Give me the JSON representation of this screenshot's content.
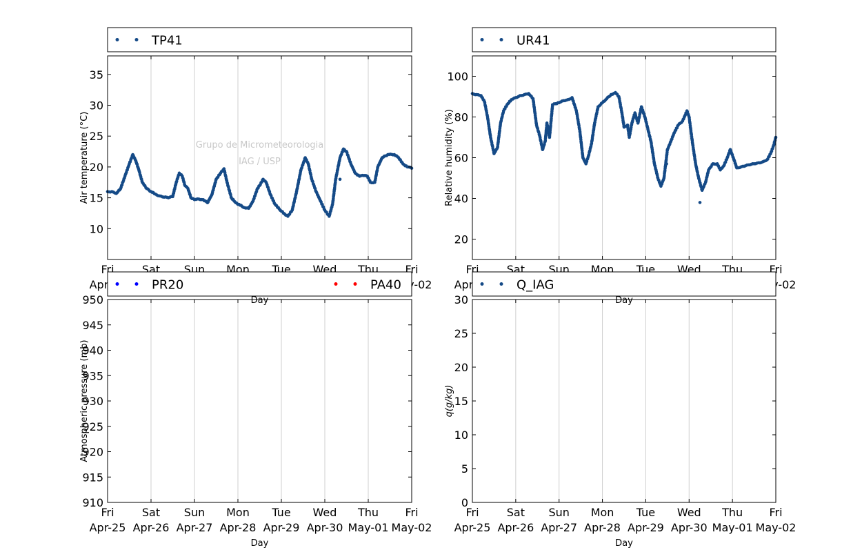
{
  "chart_data": [
    {
      "type": "scatter",
      "id": "temp",
      "ylabel": "Air temperature (°C)",
      "xlabel": "Day",
      "ylim": [
        5,
        38
      ],
      "yticks": [
        10,
        15,
        20,
        25,
        30,
        35
      ],
      "xlim": [
        0,
        7
      ],
      "grid": "vertical",
      "legend_position": "top",
      "watermark": [
        "Grupo de Micrometeorologia",
        "IAG / USP"
      ],
      "series": [
        {
          "name": "TP41",
          "color": "#154a87",
          "points": [
            [
              0.0,
              16.0
            ],
            [
              0.1,
              16.0
            ],
            [
              0.2,
              15.7
            ],
            [
              0.3,
              16.5
            ],
            [
              0.4,
              18.5
            ],
            [
              0.5,
              20.5
            ],
            [
              0.58,
              22.0
            ],
            [
              0.65,
              21.0
            ],
            [
              0.72,
              19.5
            ],
            [
              0.8,
              17.5
            ],
            [
              0.9,
              16.5
            ],
            [
              1.0,
              16.0
            ],
            [
              1.1,
              15.6
            ],
            [
              1.2,
              15.3
            ],
            [
              1.3,
              15.1
            ],
            [
              1.4,
              15.0
            ],
            [
              1.5,
              15.2
            ],
            [
              1.58,
              17.5
            ],
            [
              1.65,
              19.0
            ],
            [
              1.72,
              18.5
            ],
            [
              1.78,
              17.0
            ],
            [
              1.85,
              16.5
            ],
            [
              1.92,
              15.0
            ],
            [
              2.0,
              14.7
            ],
            [
              2.1,
              14.8
            ],
            [
              2.2,
              14.7
            ],
            [
              2.3,
              14.2
            ],
            [
              2.4,
              15.5
            ],
            [
              2.5,
              18.0
            ],
            [
              2.6,
              19.0
            ],
            [
              2.68,
              19.7
            ],
            [
              2.75,
              17.5
            ],
            [
              2.85,
              15.0
            ],
            [
              2.95,
              14.2
            ],
            [
              3.05,
              13.8
            ],
            [
              3.15,
              13.4
            ],
            [
              3.25,
              13.3
            ],
            [
              3.35,
              14.5
            ],
            [
              3.45,
              16.5
            ],
            [
              3.5,
              17.0
            ],
            [
              3.58,
              18.0
            ],
            [
              3.65,
              17.5
            ],
            [
              3.75,
              15.5
            ],
            [
              3.85,
              14.0
            ],
            [
              3.95,
              13.2
            ],
            [
              4.05,
              12.5
            ],
            [
              4.15,
              12.0
            ],
            [
              4.25,
              13.0
            ],
            [
              4.35,
              16.0
            ],
            [
              4.45,
              19.5
            ],
            [
              4.55,
              21.5
            ],
            [
              4.62,
              20.5
            ],
            [
              4.7,
              18.0
            ],
            [
              4.8,
              16.0
            ],
            [
              4.9,
              14.5
            ],
            [
              5.0,
              13.0
            ],
            [
              5.1,
              12.0
            ],
            [
              5.18,
              14.0
            ],
            [
              5.25,
              18.0
            ],
            [
              5.35,
              21.5
            ],
            [
              5.43,
              22.9
            ],
            [
              5.5,
              22.5
            ],
            [
              5.6,
              20.5
            ],
            [
              5.7,
              19.0
            ],
            [
              5.8,
              18.5
            ],
            [
              5.9,
              18.6
            ],
            [
              5.98,
              18.5
            ],
            [
              6.05,
              17.5
            ],
            [
              6.15,
              17.5
            ],
            [
              6.22,
              20.0
            ],
            [
              6.32,
              21.5
            ],
            [
              6.45,
              22.0
            ],
            [
              6.6,
              22.0
            ],
            [
              6.7,
              21.5
            ],
            [
              6.8,
              20.5
            ],
            [
              6.9,
              20.0
            ],
            [
              7.0,
              19.8
            ]
          ],
          "outliers": [
            [
              5.35,
              18.0
            ]
          ]
        }
      ]
    },
    {
      "type": "scatter",
      "id": "humidity",
      "ylabel": "Relative humidity (%)",
      "xlabel": "Day",
      "ylim": [
        10,
        110
      ],
      "yticks": [
        20,
        40,
        60,
        80,
        100
      ],
      "xlim": [
        0,
        7
      ],
      "grid": "vertical",
      "legend_position": "top",
      "series": [
        {
          "name": "UR41",
          "color": "#154a87",
          "points": [
            [
              0.0,
              91.5
            ],
            [
              0.1,
              91.0
            ],
            [
              0.2,
              90.5
            ],
            [
              0.28,
              87.5
            ],
            [
              0.35,
              80.0
            ],
            [
              0.42,
              70.0
            ],
            [
              0.5,
              62.0
            ],
            [
              0.58,
              65.0
            ],
            [
              0.65,
              77.0
            ],
            [
              0.72,
              83.0
            ],
            [
              0.8,
              86.0
            ],
            [
              0.9,
              88.5
            ],
            [
              1.0,
              89.5
            ],
            [
              1.1,
              90.5
            ],
            [
              1.2,
              91.0
            ],
            [
              1.3,
              91.5
            ],
            [
              1.4,
              89.0
            ],
            [
              1.48,
              76.0
            ],
            [
              1.55,
              71.0
            ],
            [
              1.62,
              64.0
            ],
            [
              1.68,
              68.0
            ],
            [
              1.72,
              77.0
            ],
            [
              1.78,
              70.0
            ],
            [
              1.85,
              86.0
            ],
            [
              1.92,
              86.5
            ],
            [
              2.0,
              87.0
            ],
            [
              2.1,
              88.0
            ],
            [
              2.2,
              88.5
            ],
            [
              2.3,
              89.5
            ],
            [
              2.4,
              83.0
            ],
            [
              2.48,
              73.0
            ],
            [
              2.55,
              60.0
            ],
            [
              2.62,
              57.0
            ],
            [
              2.68,
              61.0
            ],
            [
              2.75,
              67.0
            ],
            [
              2.82,
              77.0
            ],
            [
              2.9,
              85.0
            ],
            [
              3.0,
              87.0
            ],
            [
              3.1,
              89.0
            ],
            [
              3.2,
              91.0
            ],
            [
              3.3,
              92.0
            ],
            [
              3.38,
              90.0
            ],
            [
              3.45,
              82.0
            ],
            [
              3.5,
              75.0
            ],
            [
              3.58,
              76.0
            ],
            [
              3.62,
              70.0
            ],
            [
              3.68,
              77.0
            ],
            [
              3.75,
              82.0
            ],
            [
              3.82,
              77.0
            ],
            [
              3.9,
              85.0
            ],
            [
              3.98,
              80.0
            ],
            [
              4.05,
              74.0
            ],
            [
              4.12,
              68.0
            ],
            [
              4.2,
              57.0
            ],
            [
              4.28,
              50.0
            ],
            [
              4.35,
              46.0
            ],
            [
              4.42,
              50.0
            ],
            [
              4.5,
              64.0
            ],
            [
              4.58,
              68.0
            ],
            [
              4.65,
              72.0
            ],
            [
              4.75,
              76.0
            ],
            [
              4.85,
              78.0
            ],
            [
              4.95,
              83.0
            ],
            [
              5.0,
              80.0
            ],
            [
              5.08,
              67.0
            ],
            [
              5.15,
              57.0
            ],
            [
              5.22,
              50.0
            ],
            [
              5.3,
              44.0
            ],
            [
              5.38,
              48.0
            ],
            [
              5.45,
              54.0
            ],
            [
              5.55,
              57.0
            ],
            [
              5.65,
              57.0
            ],
            [
              5.72,
              54.0
            ],
            [
              5.8,
              56.0
            ],
            [
              5.88,
              60.0
            ],
            [
              5.95,
              64.0
            ],
            [
              6.02,
              60.0
            ],
            [
              6.1,
              55.0
            ],
            [
              6.2,
              55.5
            ],
            [
              6.3,
              56.0
            ],
            [
              6.4,
              56.5
            ],
            [
              6.5,
              57.0
            ],
            [
              6.6,
              57.5
            ],
            [
              6.7,
              58.0
            ],
            [
              6.8,
              59.0
            ],
            [
              6.88,
              62.0
            ],
            [
              6.95,
              66.0
            ],
            [
              7.0,
              70.0
            ]
          ],
          "outliers": [
            [
              5.25,
              38.0
            ],
            [
              4.48,
              57.0
            ]
          ]
        }
      ]
    },
    {
      "type": "scatter",
      "id": "pressure",
      "ylabel": "Atmospheric pressure (mb)",
      "xlabel": "Day",
      "ylim": [
        910,
        950
      ],
      "yticks": [
        910,
        915,
        920,
        925,
        930,
        935,
        940,
        945,
        950
      ],
      "xlim": [
        0,
        7
      ],
      "grid": "vertical",
      "legend_position": "top",
      "series": [
        {
          "name": "PR20",
          "color": "#0000ff",
          "points": []
        },
        {
          "name": "PA40",
          "color": "#ff0000",
          "points": []
        }
      ]
    },
    {
      "type": "scatter",
      "id": "specific_humidity",
      "ylabel": "q(g/kg)",
      "xlabel": "Day",
      "ylim": [
        0,
        30
      ],
      "yticks": [
        0,
        5,
        10,
        15,
        20,
        25,
        30
      ],
      "xlim": [
        0,
        7
      ],
      "grid": "vertical",
      "legend_position": "top",
      "series": [
        {
          "name": "Q_IAG",
          "color": "#154a87",
          "points": []
        }
      ]
    }
  ],
  "x_ticks": [
    {
      "day": "Fri",
      "date": "Apr-25"
    },
    {
      "day": "Sat",
      "date": "Apr-26"
    },
    {
      "day": "Sun",
      "date": "Apr-27"
    },
    {
      "day": "Mon",
      "date": "Apr-28"
    },
    {
      "day": "Tue",
      "date": "Apr-29"
    },
    {
      "day": "Wed",
      "date": "Apr-30"
    },
    {
      "day": "Thu",
      "date": "May-01"
    },
    {
      "day": "Fri",
      "date": "May-02"
    }
  ]
}
